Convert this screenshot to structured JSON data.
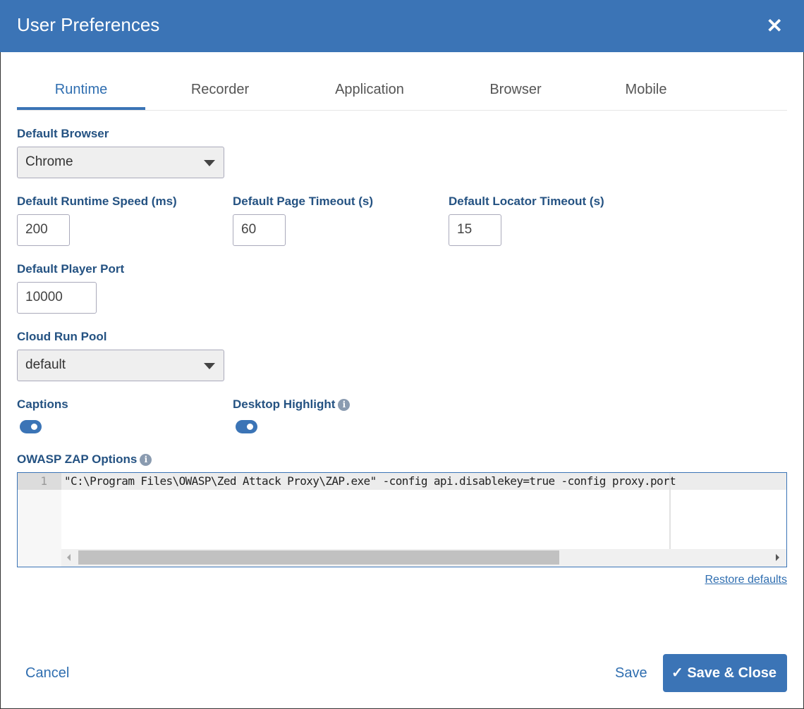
{
  "dialog": {
    "title": "User Preferences"
  },
  "tabs": [
    {
      "label": "Runtime",
      "active": true
    },
    {
      "label": "Recorder"
    },
    {
      "label": "Application"
    },
    {
      "label": "Browser"
    },
    {
      "label": "Mobile"
    }
  ],
  "fields": {
    "default_browser": {
      "label": "Default Browser",
      "value": "Chrome"
    },
    "runtime_speed": {
      "label": "Default Runtime Speed (ms)",
      "value": "200"
    },
    "page_timeout": {
      "label": "Default Page Timeout (s)",
      "value": "60"
    },
    "locator_timeout": {
      "label": "Default Locator Timeout (s)",
      "value": "15"
    },
    "player_port": {
      "label": "Default Player Port",
      "value": "10000"
    },
    "cloud_run_pool": {
      "label": "Cloud Run Pool",
      "value": "default"
    },
    "captions": {
      "label": "Captions",
      "on": true
    },
    "desktop_highlight": {
      "label": "Desktop Highlight",
      "on": true
    },
    "zap": {
      "label": "OWASP ZAP Options",
      "line_number": "1",
      "code": "\"C:\\Program Files\\OWASP\\Zed Attack Proxy\\ZAP.exe\" -config api.disablekey=true -config proxy.port"
    }
  },
  "restore_defaults": "Restore defaults",
  "footer": {
    "cancel": "Cancel",
    "save": "Save",
    "save_close": "Save & Close"
  },
  "colors": {
    "accent": "#3b74b6",
    "label": "#245282"
  }
}
